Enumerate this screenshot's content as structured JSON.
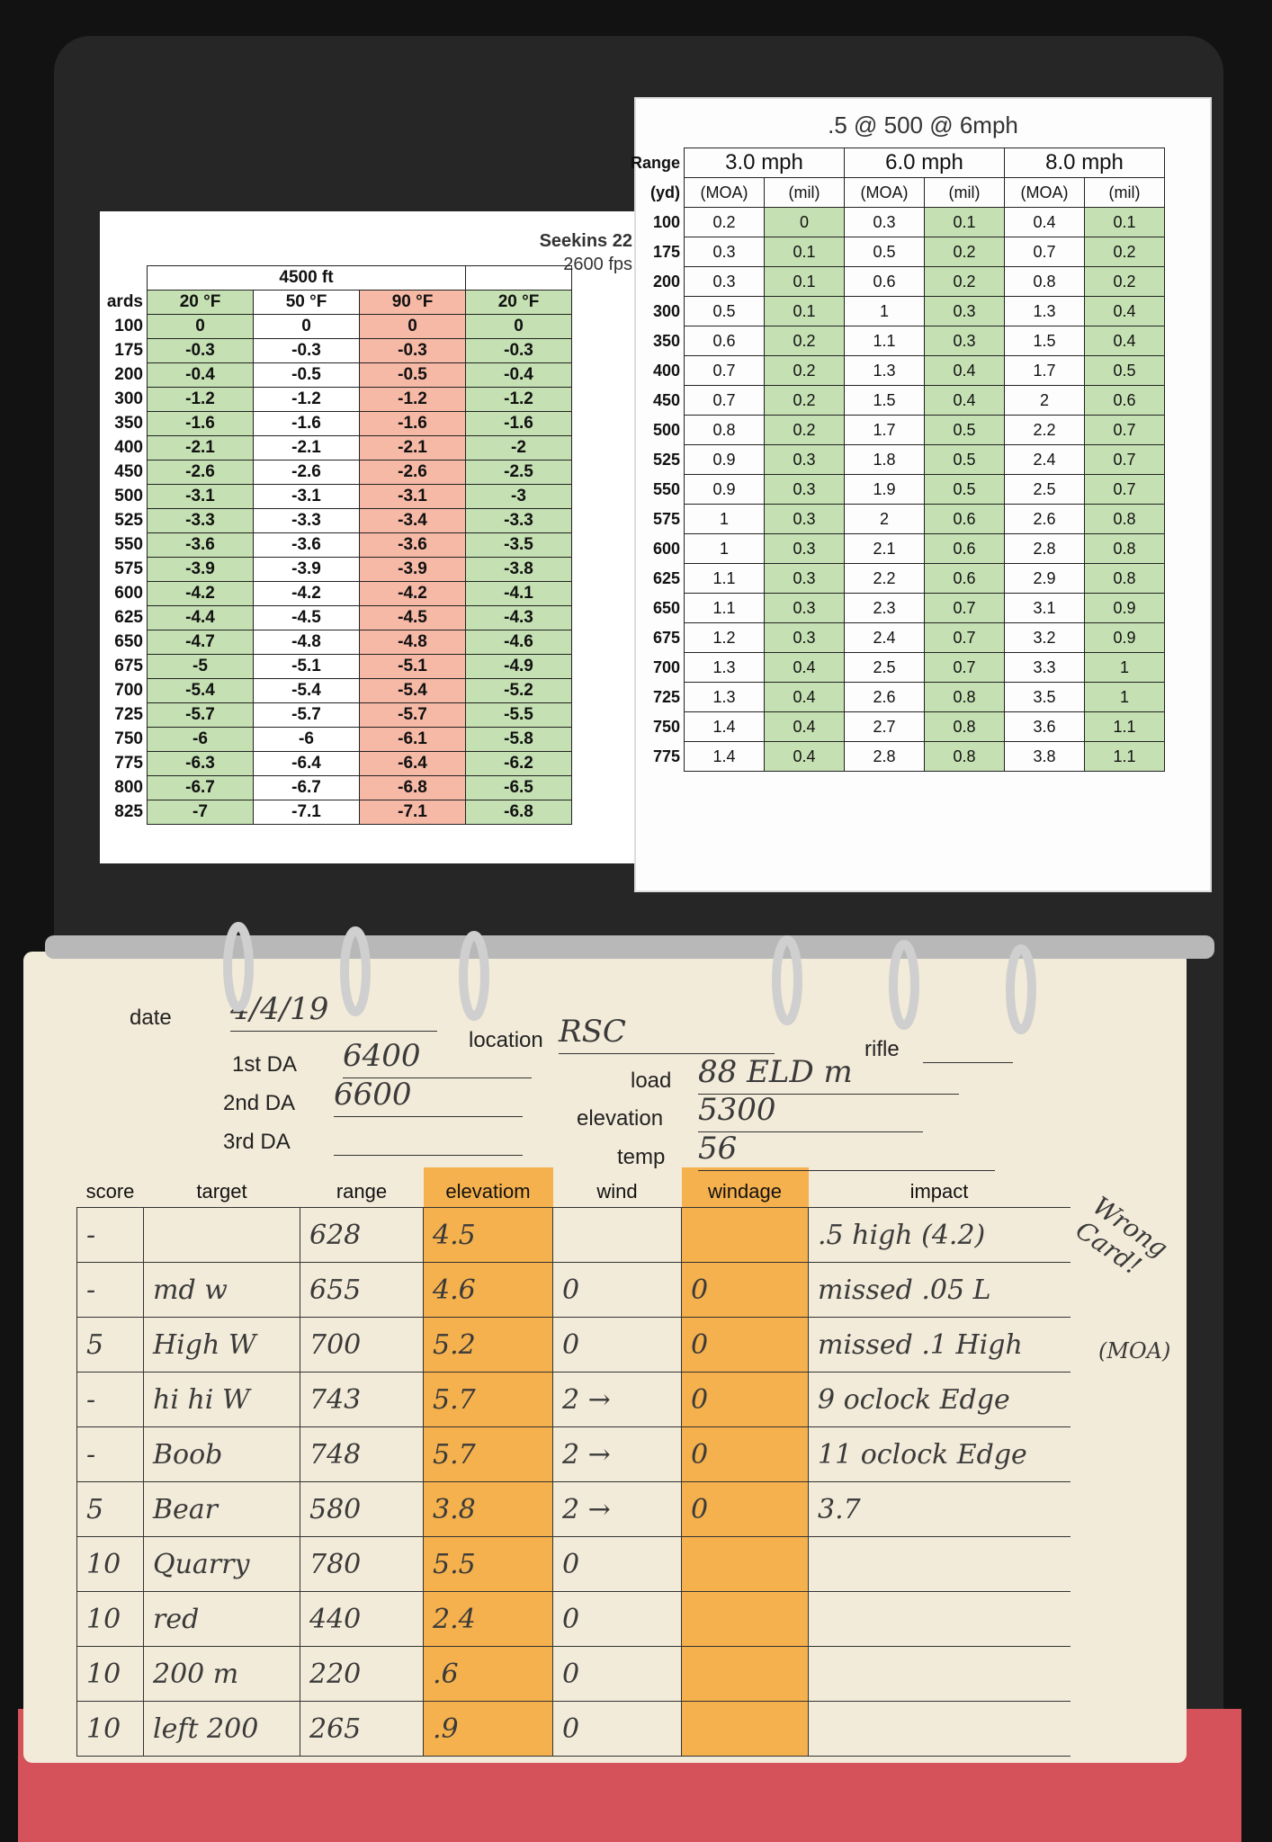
{
  "left_card": {
    "title": "Seekins 22",
    "subtitle": "2600 fps",
    "altitude": "4500 ft",
    "range_header": "ards",
    "columns": [
      "20 °F",
      "50 °F",
      "90 °F",
      "20 °F"
    ],
    "rows": [
      [
        100,
        0,
        0,
        0,
        0
      ],
      [
        175,
        -0.3,
        -0.3,
        -0.3,
        -0.3
      ],
      [
        200,
        -0.4,
        -0.5,
        -0.5,
        -0.4
      ],
      [
        300,
        -1.2,
        -1.2,
        -1.2,
        -1.2
      ],
      [
        350,
        -1.6,
        -1.6,
        -1.6,
        -1.6
      ],
      [
        400,
        -2.1,
        -2.1,
        -2.1,
        -2
      ],
      [
        450,
        -2.6,
        -2.6,
        -2.6,
        -2.5
      ],
      [
        500,
        -3.1,
        -3.1,
        -3.1,
        -3
      ],
      [
        525,
        -3.3,
        -3.3,
        -3.4,
        -3.3
      ],
      [
        550,
        -3.6,
        -3.6,
        -3.6,
        -3.5
      ],
      [
        575,
        -3.9,
        -3.9,
        -3.9,
        -3.8
      ],
      [
        600,
        -4.2,
        -4.2,
        -4.2,
        -4.1
      ],
      [
        625,
        -4.4,
        -4.5,
        -4.5,
        -4.3
      ],
      [
        650,
        -4.7,
        -4.8,
        -4.8,
        -4.6
      ],
      [
        675,
        -5,
        -5.1,
        -5.1,
        -4.9
      ],
      [
        700,
        -5.4,
        -5.4,
        -5.4,
        -5.2
      ],
      [
        725,
        -5.7,
        -5.7,
        -5.7,
        -5.5
      ],
      [
        750,
        -6,
        -6,
        -6.1,
        -5.8
      ],
      [
        775,
        -6.3,
        -6.4,
        -6.4,
        -6.2
      ],
      [
        800,
        -6.7,
        -6.7,
        -6.8,
        -6.5
      ],
      [
        825,
        -7,
        -7.1,
        -7.1,
        -6.8
      ]
    ]
  },
  "right_card": {
    "title": ".5 @ 500 @ 6mph",
    "range_header": "Range",
    "range_unit": "(yd)",
    "speeds": [
      "3.0 mph",
      "6.0 mph",
      "8.0 mph"
    ],
    "units": [
      "(MOA)",
      "(mil)",
      "(MOA)",
      "(mil)",
      "(MOA)",
      "(mil)"
    ],
    "rows": [
      [
        100,
        0.2,
        0,
        0.3,
        0.1,
        0.4,
        0.1
      ],
      [
        175,
        0.3,
        0.1,
        0.5,
        0.2,
        0.7,
        0.2
      ],
      [
        200,
        0.3,
        0.1,
        0.6,
        0.2,
        0.8,
        0.2
      ],
      [
        300,
        0.5,
        0.1,
        1,
        0.3,
        1.3,
        0.4
      ],
      [
        350,
        0.6,
        0.2,
        1.1,
        0.3,
        1.5,
        0.4
      ],
      [
        400,
        0.7,
        0.2,
        1.3,
        0.4,
        1.7,
        0.5
      ],
      [
        450,
        0.7,
        0.2,
        1.5,
        0.4,
        2,
        0.6
      ],
      [
        500,
        0.8,
        0.2,
        1.7,
        0.5,
        2.2,
        0.7
      ],
      [
        525,
        0.9,
        0.3,
        1.8,
        0.5,
        2.4,
        0.7
      ],
      [
        550,
        0.9,
        0.3,
        1.9,
        0.5,
        2.5,
        0.7
      ],
      [
        575,
        1,
        0.3,
        2,
        0.6,
        2.6,
        0.8
      ],
      [
        600,
        1,
        0.3,
        2.1,
        0.6,
        2.8,
        0.8
      ],
      [
        625,
        1.1,
        0.3,
        2.2,
        0.6,
        2.9,
        0.8
      ],
      [
        650,
        1.1,
        0.3,
        2.3,
        0.7,
        3.1,
        0.9
      ],
      [
        675,
        1.2,
        0.3,
        2.4,
        0.7,
        3.2,
        0.9
      ],
      [
        700,
        1.3,
        0.4,
        2.5,
        0.7,
        3.3,
        1
      ],
      [
        725,
        1.3,
        0.4,
        2.6,
        0.8,
        3.5,
        1
      ],
      [
        750,
        1.4,
        0.4,
        2.7,
        0.8,
        3.6,
        1.1
      ],
      [
        775,
        1.4,
        0.4,
        2.8,
        0.8,
        3.8,
        1.1
      ]
    ]
  },
  "log_sheet": {
    "fields": [
      {
        "label": "date",
        "value": "4/4/19"
      },
      {
        "label": "1st DA",
        "value": "6400"
      },
      {
        "label": "2nd DA",
        "value": "6600"
      },
      {
        "label": "3rd DA",
        "value": null
      },
      {
        "label": "location",
        "value": "RSC"
      },
      {
        "label": "rifle",
        "value": null
      },
      {
        "label": "load",
        "value": "88 ELD m"
      },
      {
        "label": "elevation",
        "value": "5300"
      },
      {
        "label": "temp",
        "value": "56"
      }
    ],
    "columns": [
      "score",
      "target",
      "range",
      "elevatiom",
      "wind",
      "windage",
      "impact"
    ],
    "rows": [
      [
        "-",
        null,
        "628",
        "4.5",
        null,
        null,
        ".5 high (4.2)"
      ],
      [
        "-",
        "md w",
        "655",
        "4.6",
        "0",
        "0",
        "missed .05 L"
      ],
      [
        "5",
        "High W",
        "700",
        "5.2",
        "0",
        "0",
        "missed .1 High"
      ],
      [
        "-",
        "hi hi W",
        "743",
        "5.7",
        "2 →",
        "0",
        "9 oclock Edge"
      ],
      [
        "-",
        "Boob",
        "748",
        "5.7",
        "2 →",
        "0",
        "11 oclock Edge"
      ],
      [
        "5",
        "Bear",
        "580",
        "3.8",
        "2 →",
        "0",
        "3.7"
      ],
      [
        "10",
        "Quarry",
        "780",
        "5.5",
        "0",
        null,
        null
      ],
      [
        "10",
        "red",
        "440",
        "2.4",
        "0",
        null,
        null
      ],
      [
        "10",
        "200 m",
        "220",
        ".6",
        "0",
        null,
        null
      ],
      [
        "10",
        "left 200",
        "265",
        ".9",
        "0",
        null,
        null
      ]
    ],
    "margin_note": "Wrong Card!",
    "margin_note_2": "(MOA)"
  }
}
